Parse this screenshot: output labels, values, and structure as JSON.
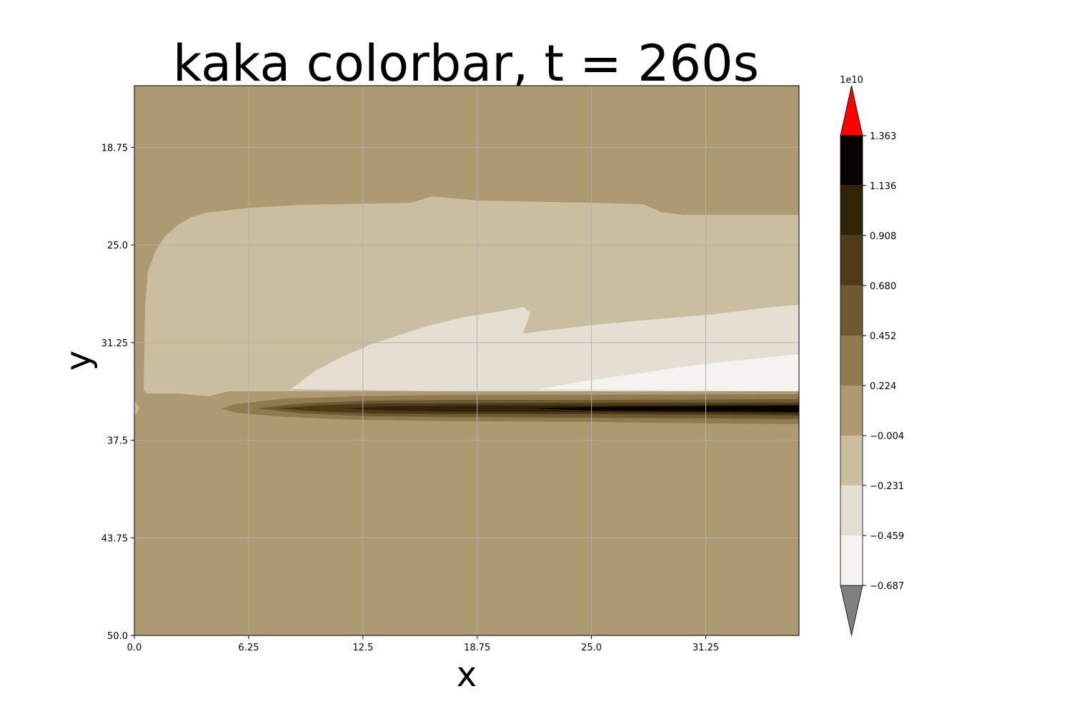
{
  "chart_data": {
    "type": "contour",
    "title": "kaka colorbar, t = 260s",
    "xlabel": "x",
    "ylabel": "y",
    "xlim": [
      0,
      36.35
    ],
    "ylim": [
      50.0,
      14.8
    ],
    "x_ticks": [
      "0.0",
      "6.25",
      "12.5",
      "18.75",
      "25.0",
      "31.25"
    ],
    "x_tick_values": [
      0,
      6.25,
      12.5,
      18.75,
      25.0,
      31.25
    ],
    "y_ticks": [
      "18.75",
      "25.0",
      "31.25",
      "37.5",
      "43.75",
      "50.0"
    ],
    "y_tick_values": [
      18.75,
      25.0,
      31.25,
      37.5,
      43.75,
      50.0
    ],
    "grid": true,
    "colorbar": {
      "scale_label": "1e10",
      "ticks": [
        "−0.687",
        "−0.459",
        "−0.231",
        "−0.004",
        "0.224",
        "0.452",
        "0.680",
        "0.908",
        "1.136",
        "1.363"
      ],
      "levels": [
        -0.687,
        -0.459,
        -0.231,
        -0.004,
        0.224,
        0.452,
        0.68,
        0.908,
        1.136,
        1.363
      ],
      "colors": [
        "#f4f3ef",
        "#e4ded3",
        "#cbbea0",
        "#ad9a73",
        "#907a50",
        "#6e5a32",
        "#4c3a18",
        "#312309",
        "#050401"
      ],
      "over_color": "#ff0000",
      "under_color": "#808080"
    },
    "background_color": "#ad9a73"
  }
}
